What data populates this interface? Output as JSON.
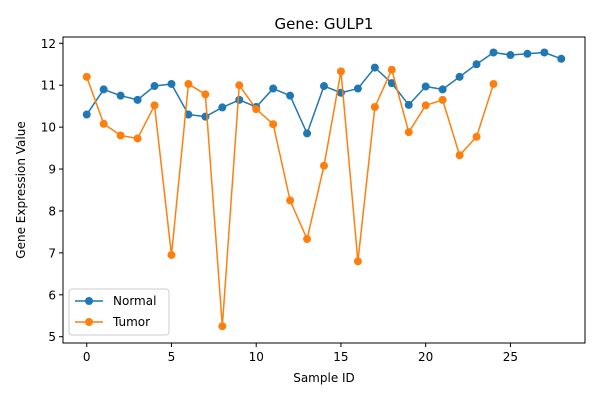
{
  "chart_data": {
    "type": "line",
    "title": "Gene: GULP1",
    "xlabel": "Sample ID",
    "ylabel": "Gene Expression Value",
    "xlim": [
      -1.4,
      29.4
    ],
    "ylim": [
      4.85,
      12.15
    ],
    "xticks": [
      0,
      5,
      10,
      15,
      20,
      25
    ],
    "yticks": [
      5,
      6,
      7,
      8,
      9,
      10,
      11,
      12
    ],
    "grid": false,
    "legend_position": "lower-left",
    "series": [
      {
        "name": "Normal",
        "color": "#1f77b4",
        "x": [
          0,
          1,
          2,
          3,
          4,
          5,
          6,
          7,
          8,
          9,
          10,
          11,
          12,
          13,
          14,
          15,
          16,
          17,
          18,
          19,
          20,
          21,
          22,
          23,
          24,
          25,
          26,
          27,
          28
        ],
        "values": [
          10.3,
          10.9,
          10.75,
          10.65,
          10.98,
          11.03,
          10.3,
          10.25,
          10.47,
          10.65,
          10.48,
          10.92,
          10.75,
          9.85,
          10.98,
          10.82,
          10.92,
          11.42,
          11.05,
          10.53,
          10.97,
          10.9,
          11.2,
          11.5,
          11.78,
          11.72,
          11.75,
          11.78,
          11.63
        ]
      },
      {
        "name": "Tumor",
        "color": "#ff7f0e",
        "x": [
          0,
          1,
          2,
          3,
          4,
          5,
          6,
          7,
          8,
          9,
          10,
          11,
          12,
          13,
          14,
          15,
          16,
          17,
          18,
          19,
          20,
          21,
          22,
          23,
          24
        ],
        "values": [
          11.2,
          10.08,
          9.8,
          9.73,
          10.52,
          6.95,
          11.03,
          10.78,
          5.25,
          11.0,
          10.43,
          10.07,
          8.25,
          7.33,
          9.08,
          11.33,
          6.8,
          10.48,
          11.37,
          9.88,
          10.52,
          10.65,
          9.33,
          9.77,
          11.03
        ]
      }
    ]
  }
}
